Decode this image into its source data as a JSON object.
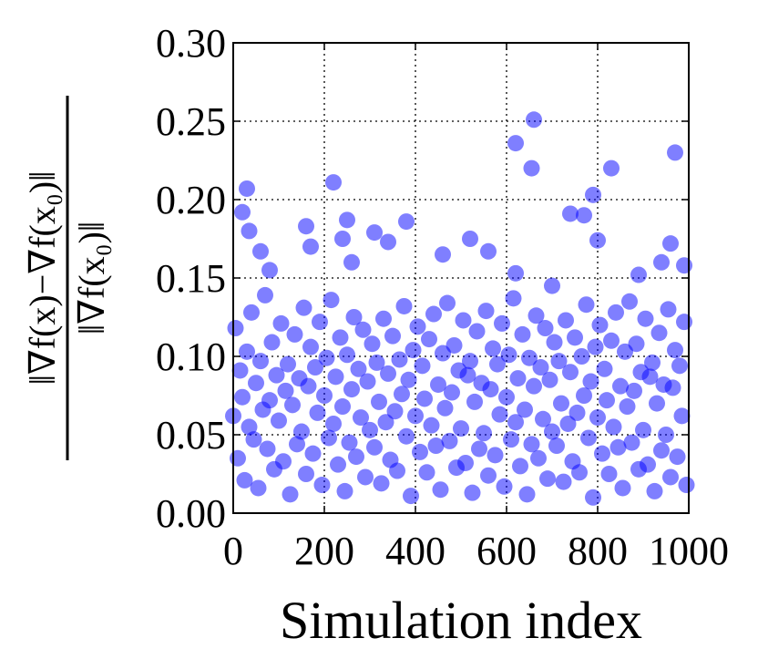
{
  "chart_data": {
    "type": "scatter",
    "xlabel": "Simulation index",
    "ylabel": [
      "‖∇f(x)−∇f(x₀)‖",
      "‖∇f(x₀)‖"
    ],
    "color": "#0000ff",
    "alpha": 0.5,
    "grid": true,
    "xlim": [
      0,
      1000
    ],
    "xticks": [
      0,
      200,
      400,
      600,
      800,
      1000
    ],
    "ylim": [
      0,
      0.3
    ],
    "yticks": [
      {
        "value": 0,
        "label": "0.00"
      },
      {
        "value": 0.05,
        "label": "0.05"
      },
      {
        "value": 0.1,
        "label": "0.10"
      },
      {
        "value": 0.15,
        "label": "0.15"
      },
      {
        "value": 0.2,
        "label": "0.20"
      },
      {
        "value": 0.25,
        "label": "0.25"
      },
      {
        "value": 0.3,
        "label": "0.30"
      }
    ],
    "x": [
      0,
      5,
      10,
      15,
      20,
      25,
      30,
      35,
      40,
      45,
      50,
      55,
      60,
      65,
      70,
      75,
      80,
      85,
      90,
      95,
      100,
      105,
      110,
      115,
      120,
      125,
      130,
      135,
      140,
      145,
      150,
      155,
      160,
      165,
      170,
      175,
      180,
      185,
      190,
      195,
      200,
      205,
      210,
      215,
      220,
      225,
      230,
      235,
      240,
      245,
      250,
      255,
      260,
      265,
      270,
      275,
      280,
      285,
      290,
      295,
      300,
      305,
      310,
      315,
      320,
      325,
      330,
      335,
      340,
      345,
      350,
      355,
      360,
      365,
      370,
      375,
      380,
      385,
      390,
      395,
      400,
      405,
      410,
      415,
      420,
      425,
      430,
      435,
      440,
      445,
      450,
      455,
      460,
      465,
      470,
      475,
      480,
      485,
      490,
      495,
      500,
      505,
      510,
      515,
      520,
      525,
      530,
      535,
      540,
      545,
      550,
      555,
      560,
      565,
      570,
      575,
      580,
      585,
      590,
      595,
      600,
      605,
      610,
      615,
      620,
      625,
      630,
      635,
      640,
      645,
      650,
      655,
      660,
      665,
      670,
      675,
      680,
      685,
      690,
      695,
      700,
      705,
      710,
      715,
      720,
      725,
      730,
      735,
      740,
      745,
      750,
      755,
      760,
      765,
      770,
      775,
      780,
      785,
      790,
      795,
      800,
      805,
      810,
      815,
      820,
      825,
      830,
      835,
      840,
      845,
      850,
      855,
      860,
      865,
      870,
      875,
      880,
      885,
      890,
      895,
      900,
      905,
      910,
      915,
      920,
      925,
      930,
      935,
      940,
      945,
      950,
      955,
      960,
      965,
      970,
      975,
      980,
      985,
      990,
      995,
      20,
      30,
      35,
      60,
      80,
      160,
      170,
      220,
      240,
      250,
      260,
      310,
      340,
      380,
      460,
      520,
      560,
      620,
      660,
      655,
      740,
      770,
      790,
      800,
      830,
      970,
      960,
      990,
      940,
      890,
      620,
      700
    ],
    "y": [
      0.062,
      0.118,
      0.035,
      0.091,
      0.074,
      0.021,
      0.103,
      0.055,
      0.128,
      0.047,
      0.083,
      0.016,
      0.097,
      0.066,
      0.139,
      0.041,
      0.072,
      0.109,
      0.028,
      0.088,
      0.059,
      0.121,
      0.033,
      0.078,
      0.095,
      0.012,
      0.069,
      0.114,
      0.044,
      0.086,
      0.052,
      0.131,
      0.025,
      0.081,
      0.106,
      0.038,
      0.093,
      0.064,
      0.122,
      0.018,
      0.075,
      0.099,
      0.048,
      0.136,
      0.057,
      0.087,
      0.031,
      0.112,
      0.068,
      0.014,
      0.101,
      0.045,
      0.079,
      0.125,
      0.036,
      0.092,
      0.061,
      0.117,
      0.023,
      0.084,
      0.053,
      0.108,
      0.042,
      0.096,
      0.071,
      0.019,
      0.124,
      0.058,
      0.089,
      0.034,
      0.113,
      0.065,
      0.027,
      0.098,
      0.076,
      0.132,
      0.049,
      0.085,
      0.011,
      0.104,
      0.062,
      0.119,
      0.039,
      0.094,
      0.073,
      0.026,
      0.111,
      0.056,
      0.127,
      0.043,
      0.082,
      0.015,
      0.102,
      0.067,
      0.134,
      0.046,
      0.077,
      0.107,
      0.029,
      0.091,
      0.054,
      0.123,
      0.032,
      0.088,
      0.097,
      0.013,
      0.071,
      0.116,
      0.041,
      0.083,
      0.051,
      0.129,
      0.024,
      0.079,
      0.105,
      0.037,
      0.095,
      0.063,
      0.121,
      0.017,
      0.074,
      0.101,
      0.047,
      0.137,
      0.058,
      0.086,
      0.03,
      0.114,
      0.066,
      0.012,
      0.099,
      0.044,
      0.081,
      0.126,
      0.035,
      0.093,
      0.06,
      0.118,
      0.022,
      0.085,
      0.052,
      0.109,
      0.043,
      0.097,
      0.07,
      0.02,
      0.123,
      0.057,
      0.09,
      0.033,
      0.112,
      0.064,
      0.026,
      0.1,
      0.075,
      0.133,
      0.048,
      0.084,
      0.01,
      0.106,
      0.061,
      0.12,
      0.038,
      0.092,
      0.072,
      0.025,
      0.11,
      0.055,
      0.128,
      0.042,
      0.081,
      0.016,
      0.103,
      0.068,
      0.135,
      0.045,
      0.078,
      0.108,
      0.028,
      0.09,
      0.053,
      0.124,
      0.031,
      0.087,
      0.096,
      0.014,
      0.07,
      0.115,
      0.04,
      0.082,
      0.05,
      0.13,
      0.023,
      0.08,
      0.104,
      0.036,
      0.094,
      0.062,
      0.122,
      0.018,
      0.192,
      0.207,
      0.18,
      0.167,
      0.155,
      0.183,
      0.17,
      0.211,
      0.175,
      0.187,
      0.16,
      0.179,
      0.173,
      0.186,
      0.165,
      0.175,
      0.167,
      0.236,
      0.251,
      0.22,
      0.191,
      0.19,
      0.203,
      0.174,
      0.22,
      0.23,
      0.172,
      0.158,
      0.16,
      0.152,
      0.153,
      0.145
    ]
  }
}
